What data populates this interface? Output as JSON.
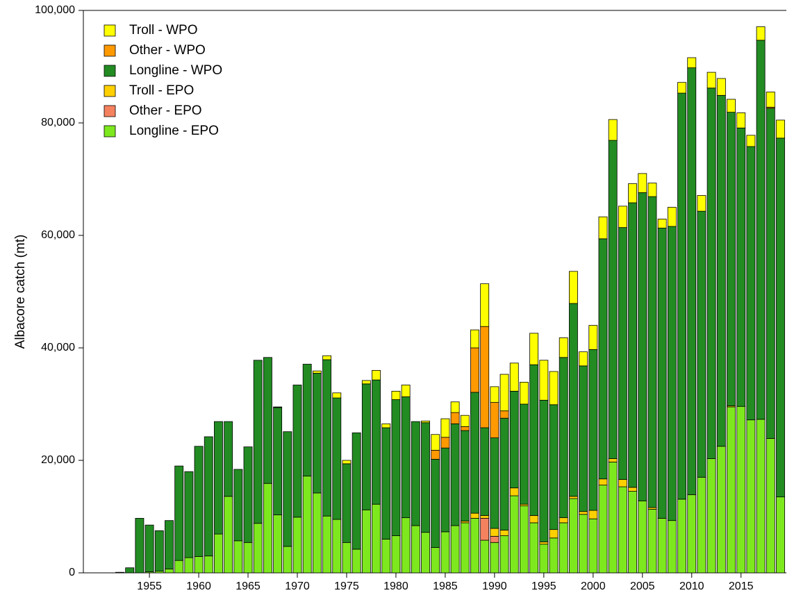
{
  "chart_data": {
    "type": "stacked_bar",
    "y_label": "Albacore catch (mt)",
    "x": [
      1952,
      1953,
      1954,
      1955,
      1956,
      1957,
      1958,
      1959,
      1960,
      1961,
      1962,
      1963,
      1964,
      1965,
      1966,
      1967,
      1968,
      1969,
      1970,
      1971,
      1972,
      1973,
      1974,
      1975,
      1976,
      1977,
      1978,
      1979,
      1980,
      1981,
      1982,
      1983,
      1984,
      1985,
      1986,
      1987,
      1988,
      1989,
      1990,
      1991,
      1992,
      1993,
      1994,
      1995,
      1996,
      1997,
      1998,
      1999,
      2000,
      2001,
      2002,
      2003,
      2004,
      2005,
      2006,
      2007,
      2008,
      2009,
      2010,
      2011,
      2012,
      2013,
      2014,
      2015,
      2016,
      2017,
      2018,
      2019
    ],
    "xlim": [
      1948.3,
      2019.6
    ],
    "xticks": [
      1955,
      1960,
      1965,
      1970,
      1975,
      1980,
      1985,
      1990,
      1995,
      2000,
      2005,
      2010,
      2015
    ],
    "ylim": [
      0,
      100000
    ],
    "yticks": [
      0,
      {
        "value": 20000,
        "label": "20,000"
      },
      {
        "value": 40000,
        "label": "40,000"
      },
      {
        "value": 60000,
        "label": "60,000"
      },
      {
        "value": 80000,
        "label": "80,000"
      },
      {
        "value": 100000,
        "label": "100,000"
      }
    ],
    "legend": "top-left",
    "series": [
      {
        "name": "Longline - EPO",
        "color": "#7ee81e",
        "values": [
          0,
          0,
          0,
          200,
          300,
          700,
          2200,
          2700,
          2900,
          3000,
          6900,
          13600,
          5700,
          5400,
          8800,
          15900,
          10300,
          4700,
          9900,
          17200,
          14200,
          10100,
          9500,
          5400,
          4200,
          11200,
          12200,
          6000,
          6600,
          9800,
          8400,
          7200,
          4500,
          7300,
          8400,
          8900,
          9700,
          5800,
          5400,
          6600,
          13700,
          11900,
          8900,
          5100,
          6200,
          8900,
          13200,
          10400,
          9600,
          15600,
          19700,
          15300,
          14500,
          12800,
          11300,
          9700,
          9300,
          13100,
          13900,
          17000,
          20300,
          22500,
          29500,
          29600,
          27200,
          27300,
          23900,
          13500
        ]
      },
      {
        "name": "Other - EPO",
        "color": "#f5825f",
        "values": [
          0,
          0,
          0,
          0,
          0,
          0,
          0,
          0,
          0,
          0,
          0,
          0,
          0,
          0,
          0,
          0,
          0,
          0,
          0,
          0,
          0,
          0,
          0,
          0,
          0,
          0,
          0,
          0,
          0,
          0,
          0,
          0,
          0,
          0,
          0,
          0,
          0,
          3900,
          1100,
          0,
          0,
          0,
          0,
          0,
          0,
          0,
          0,
          0,
          0,
          0,
          0,
          0,
          0,
          0,
          0,
          0,
          0,
          0,
          0,
          0,
          0,
          0,
          0,
          0,
          0,
          0,
          0,
          0
        ]
      },
      {
        "name": "Troll - EPO",
        "color": "#ffd000",
        "values": [
          0,
          0,
          0,
          0,
          0,
          0,
          0,
          0,
          0,
          0,
          0,
          0,
          0,
          0,
          0,
          0,
          0,
          0,
          0,
          0,
          0,
          0,
          0,
          0,
          0,
          0,
          0,
          0,
          0,
          0,
          0,
          0,
          0,
          0,
          0,
          300,
          900,
          500,
          1400,
          1000,
          1400,
          300,
          1300,
          400,
          1500,
          900,
          400,
          500,
          1500,
          1100,
          600,
          1300,
          700,
          0,
          300,
          0,
          0,
          0,
          0,
          0,
          0,
          0,
          200,
          0,
          0,
          0,
          0,
          0
        ]
      },
      {
        "name": "Longline - WPO",
        "color": "#228b22",
        "values": [
          100,
          900,
          9700,
          8300,
          7200,
          8600,
          16800,
          15300,
          19600,
          21200,
          20000,
          13300,
          12700,
          17000,
          29000,
          22400,
          19100,
          20400,
          23500,
          19900,
          21300,
          27800,
          21600,
          14000,
          20700,
          22400,
          22100,
          19800,
          24200,
          21500,
          18500,
          19500,
          15700,
          14900,
          18100,
          16100,
          21500,
          15600,
          16100,
          19900,
          17200,
          17800,
          26800,
          25200,
          22200,
          28500,
          34300,
          25900,
          28600,
          42700,
          56600,
          44800,
          50600,
          54800,
          55300,
          51600,
          52300,
          72200,
          75900,
          47300,
          65900,
          62400,
          52200,
          49500,
          48600,
          67400,
          58700,
          63800
        ]
      },
      {
        "name": "Other - WPO",
        "color": "#ff9900",
        "values": [
          0,
          0,
          0,
          0,
          0,
          0,
          0,
          0,
          0,
          0,
          0,
          0,
          0,
          0,
          0,
          0,
          0,
          0,
          0,
          0,
          0,
          0,
          0,
          0,
          0,
          0,
          0,
          0,
          0,
          0,
          0,
          0,
          1600,
          1900,
          2000,
          700,
          7900,
          18000,
          6300,
          1300,
          0,
          0,
          0,
          0,
          0,
          0,
          0,
          0,
          0,
          0,
          0,
          0,
          0,
          0,
          0,
          0,
          0,
          0,
          0,
          0,
          0,
          0,
          0,
          0,
          0,
          0,
          200,
          0
        ]
      },
      {
        "name": "Troll - WPO",
        "color": "#ffff00",
        "values": [
          0,
          0,
          0,
          0,
          0,
          0,
          0,
          0,
          0,
          0,
          0,
          0,
          0,
          0,
          0,
          0,
          100,
          0,
          0,
          0,
          400,
          700,
          900,
          600,
          0,
          600,
          1700,
          700,
          1500,
          2100,
          0,
          300,
          2800,
          3300,
          1900,
          2000,
          3200,
          7600,
          2800,
          6500,
          5000,
          3900,
          5600,
          7100,
          5900,
          3500,
          5700,
          2500,
          4300,
          3900,
          3700,
          3800,
          3400,
          3400,
          2400,
          1600,
          3400,
          1900,
          1800,
          2800,
          2800,
          3000,
          2300,
          2700,
          2000,
          2400,
          2700,
          3200
        ]
      }
    ]
  }
}
